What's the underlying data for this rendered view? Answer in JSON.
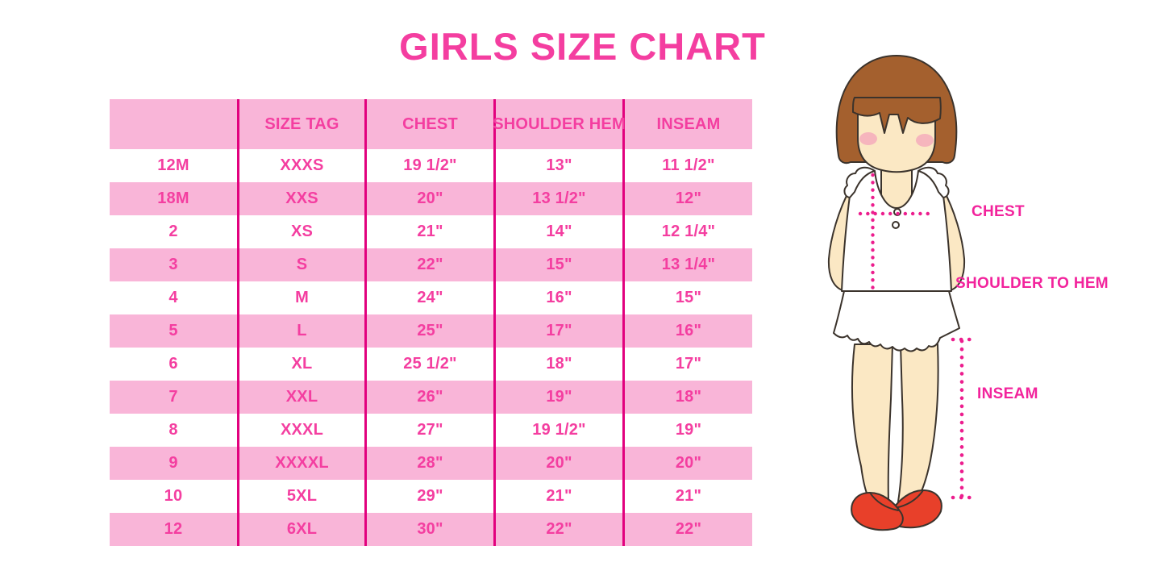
{
  "page": {
    "title": "GIRLS SIZE CHART",
    "background": "#FFFFFF"
  },
  "colors": {
    "title_pink": "#F43EA0",
    "table_text_pink": "#F43EA0",
    "row_stripe_pink": "#F9B5D8",
    "column_rule_magenta": "#E2017E",
    "measure_label_pink": "#F2239C",
    "dotted_line_pink": "#EC1E8E",
    "hair_brown": "#A4602E",
    "skin_tone": "#FBE8C4",
    "blush_pink": "#F5A9BC",
    "shoe_red": "#E8402A",
    "outline_dark": "#3B332C"
  },
  "chart_data": {
    "type": "table",
    "title": "GIRLS SIZE CHART",
    "columns": [
      "",
      "SIZE TAG",
      "CHEST",
      "SHOULDER HEM",
      "INSEAM"
    ],
    "rows": [
      [
        "12M",
        "XXXS",
        "19 1/2\"",
        "13\"",
        "11 1/2\""
      ],
      [
        "18M",
        "XXS",
        "20\"",
        "13 1/2\"",
        "12\""
      ],
      [
        "2",
        "XS",
        "21\"",
        "14\"",
        "12 1/4\""
      ],
      [
        "3",
        "S",
        "22\"",
        "15\"",
        "13 1/4\""
      ],
      [
        "4",
        "M",
        "24\"",
        "16\"",
        "15\""
      ],
      [
        "5",
        "L",
        "25\"",
        "17\"",
        "16\""
      ],
      [
        "6",
        "XL",
        "25 1/2\"",
        "18\"",
        "17\""
      ],
      [
        "7",
        "XXL",
        "26\"",
        "19\"",
        "18\""
      ],
      [
        "8",
        "XXXL",
        "27\"",
        "19 1/2\"",
        "19\""
      ],
      [
        "9",
        "XXXXL",
        "28\"",
        "20\"",
        "20\""
      ],
      [
        "10",
        "5XL",
        "29\"",
        "21\"",
        "21\""
      ],
      [
        "12",
        "6XL",
        "30\"",
        "22\"",
        "22\""
      ]
    ]
  },
  "diagram": {
    "figure": "girl-measurement-illustration",
    "labels": {
      "chest": "CHEST",
      "shoulder_to_hem": "SHOULDER TO HEM",
      "inseam": "INSEAM"
    }
  }
}
